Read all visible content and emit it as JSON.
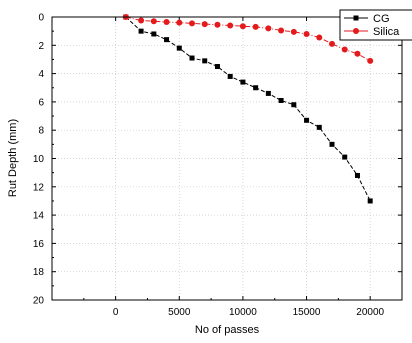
{
  "chart_data": {
    "type": "line",
    "title": "",
    "xlabel": "No of passes",
    "ylabel": "Rut Depth (mm)",
    "xlim": [
      -5000,
      22500
    ],
    "ylim": [
      0,
      20
    ],
    "y_inverted": true,
    "xticks": [
      0,
      5000,
      10000,
      15000,
      20000
    ],
    "yticks": [
      0,
      2,
      4,
      6,
      8,
      10,
      12,
      14,
      16,
      18,
      20
    ],
    "grid": true,
    "legend": "top-right",
    "series": [
      {
        "name": "CG",
        "color": "#000000",
        "marker": "square",
        "line_style": "dashed",
        "x": [
          800,
          2000,
          3000,
          4000,
          5000,
          6000,
          7000,
          8000,
          9000,
          10000,
          11000,
          12000,
          13000,
          14000,
          15000,
          16000,
          17000,
          18000,
          19000,
          20000
        ],
        "y": [
          0.0,
          1.0,
          1.2,
          1.6,
          2.2,
          2.9,
          3.1,
          3.5,
          4.2,
          4.6,
          5.0,
          5.4,
          5.9,
          6.2,
          7.3,
          7.8,
          9.0,
          9.9,
          11.2,
          13.0
        ]
      },
      {
        "name": "Silica",
        "color": "#e41a1c",
        "marker": "circle",
        "line_style": "dash-dot",
        "x": [
          800,
          2000,
          3000,
          4000,
          5000,
          6000,
          7000,
          8000,
          9000,
          10000,
          11000,
          12000,
          13000,
          14000,
          15000,
          16000,
          17000,
          18000,
          19000,
          20000
        ],
        "y": [
          0.0,
          0.25,
          0.3,
          0.35,
          0.4,
          0.45,
          0.5,
          0.55,
          0.6,
          0.65,
          0.7,
          0.8,
          0.95,
          1.05,
          1.2,
          1.45,
          1.9,
          2.3,
          2.6,
          3.1
        ]
      }
    ]
  }
}
